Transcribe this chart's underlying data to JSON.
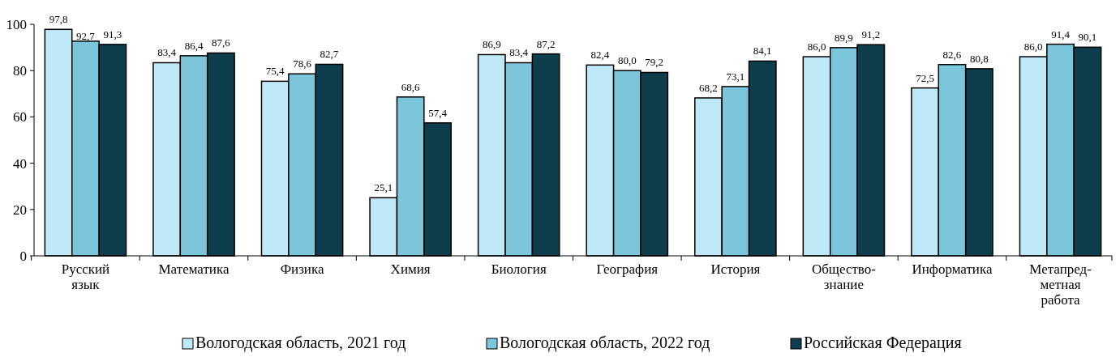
{
  "chart_data": {
    "type": "bar",
    "categories": [
      "Русский\nязык",
      "Математика",
      "Физика",
      "Химия",
      "Биология",
      "География",
      "История",
      "Общество-\nзнание",
      "Информатика",
      "Метапред-\nметная\nработа"
    ],
    "series": [
      {
        "name": "Вологодская область, 2021 год",
        "color": "#bfe9f7",
        "values": [
          97.8,
          83.4,
          75.4,
          25.1,
          86.9,
          82.4,
          68.2,
          86.0,
          72.5,
          86.0
        ],
        "value_labels": [
          "97,8",
          "83,4",
          "75,4",
          "25,1",
          "86,9",
          "82,4",
          "68,2",
          "86,0",
          "72,5",
          "86,0"
        ]
      },
      {
        "name": "Вологодская область, 2022 год",
        "color": "#7cc6dc",
        "values": [
          92.7,
          86.4,
          78.6,
          68.6,
          83.4,
          80.0,
          73.1,
          89.9,
          82.6,
          91.4
        ],
        "value_labels": [
          "92,7",
          "86,4",
          "78,6",
          "68,6",
          "83,4",
          "80,0",
          "73,1",
          "89,9",
          "82,6",
          "91,4"
        ]
      },
      {
        "name": "Российская Федерация",
        "color": "#0e3d4c",
        "values": [
          91.3,
          87.6,
          82.7,
          57.4,
          87.2,
          79.2,
          84.1,
          91.2,
          80.8,
          90.1
        ],
        "value_labels": [
          "91,3",
          "87,6",
          "82,7",
          "57,4",
          "87,2",
          "79,2",
          "84,1",
          "91,2",
          "80,8",
          "90,1"
        ]
      }
    ],
    "ylim": [
      0,
      100
    ],
    "yticks": [
      0,
      20,
      40,
      60,
      80,
      100
    ],
    "grid": false,
    "legend": "bottom"
  }
}
